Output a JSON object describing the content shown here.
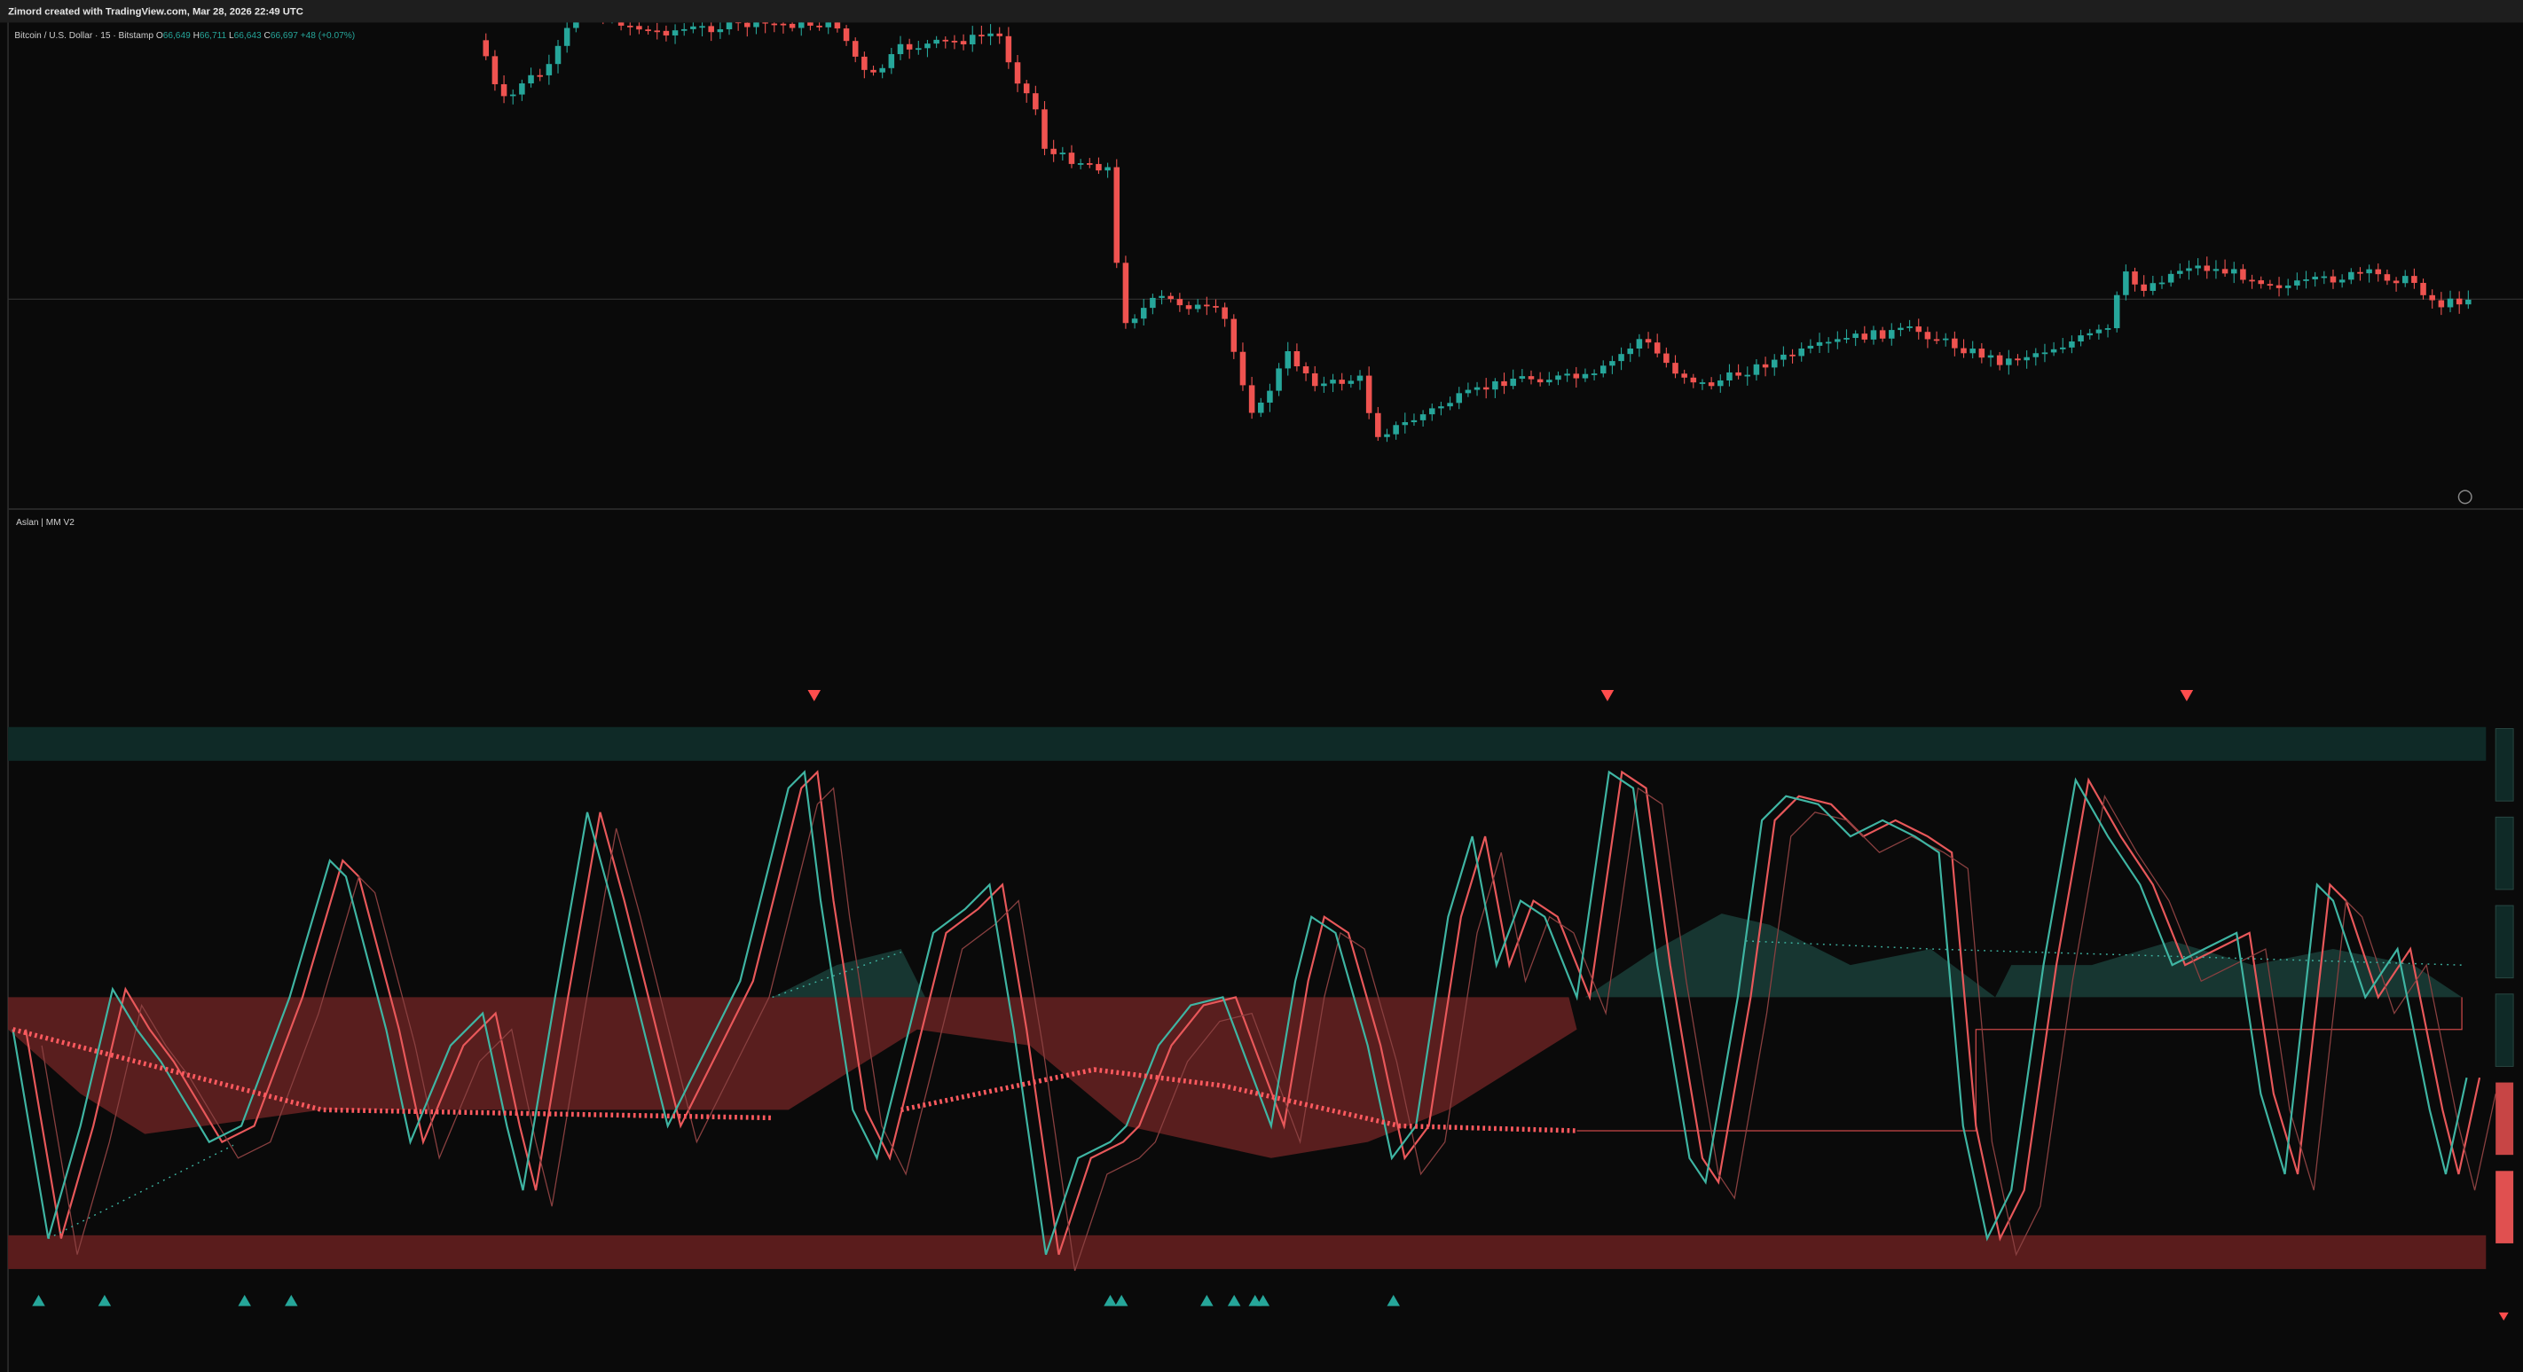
{
  "header": {
    "title": "Zimord created with TradingView.com, Mar 28, 2026 22:49 UTC"
  },
  "price_legend": {
    "symbol": "Bitcoin / U.S. Dollar · 15 · Bitstamp",
    "open_label": "O",
    "open": "66,649",
    "high_label": "H",
    "high": "66,711",
    "low_label": "L",
    "low": "66,643",
    "close_label": "C",
    "close": "66,697",
    "change": "+48 (+0.07%)"
  },
  "indicator": {
    "name": "Aslan | MM V2"
  }
}
